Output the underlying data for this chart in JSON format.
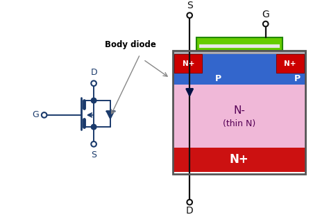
{
  "bg_color": "#ffffff",
  "mosfet_blue": "#1a3a6b",
  "structure_blue": "#3366cc",
  "structure_pink": "#f0b8d8",
  "structure_red": "#cc1111",
  "structure_green": "#66cc00",
  "n_plus_red": "#cc0000",
  "gate_oxide_color": "#c8c8c8",
  "body_diode_text": "Body diode",
  "label_S": "S",
  "label_G": "G",
  "label_D": "D",
  "label_Nminus": "N-",
  "label_thin": "(thin N)",
  "label_Nplus": "N+",
  "label_Nplus_small": "N+",
  "label_P": "P",
  "term_color": "#111111",
  "arrow_color": "#888888"
}
